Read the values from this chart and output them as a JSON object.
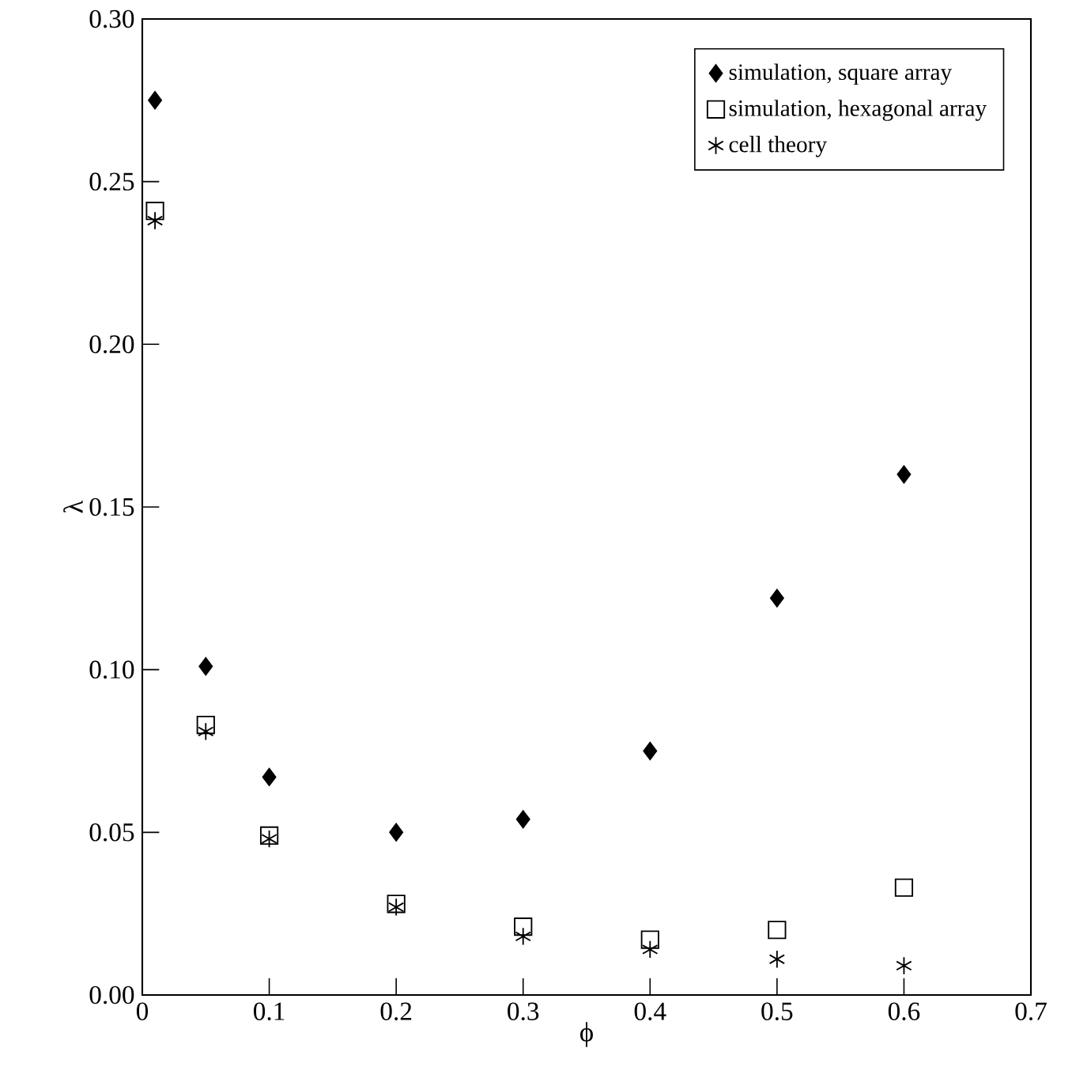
{
  "chart_data": {
    "type": "scatter",
    "xlabel": "ϕ",
    "ylabel": "λ",
    "xlim": [
      0,
      0.7
    ],
    "xticks": [
      0,
      0.1,
      0.2,
      0.3,
      0.4,
      0.5,
      0.6,
      0.7
    ],
    "ylim": [
      0,
      0.3
    ],
    "yticks": [
      {
        "value": 0,
        "label": "0.00"
      },
      {
        "value": 0.05,
        "label": "0.05"
      },
      {
        "value": 0.1,
        "label": "0.10"
      },
      {
        "value": 0.15,
        "label": "0.15"
      },
      {
        "value": 0.2,
        "label": "0.20"
      },
      {
        "value": 0.25,
        "label": "0.25"
      },
      {
        "value": 0.3,
        "label": "0.30"
      }
    ],
    "grid": false,
    "legend": "top right",
    "x": [
      0.01,
      0.05,
      0.1,
      0.2,
      0.3,
      0.4,
      0.5,
      0.6
    ],
    "series": [
      {
        "name": "simulation, square array",
        "color": "#000000",
        "marker": "diamond",
        "values": [
          0.275,
          0.101,
          0.067,
          0.05,
          0.054,
          0.075,
          0.122,
          0.16
        ]
      },
      {
        "name": "simulation, hexagonal array",
        "color": "#000000",
        "marker": "square",
        "values": [
          0.241,
          0.083,
          0.049,
          0.028,
          0.021,
          0.017,
          0.02,
          0.033
        ]
      },
      {
        "name": "cell theory",
        "color": "#000000",
        "marker": "cross",
        "values": [
          0.238,
          0.081,
          0.048,
          0.027,
          0.018,
          0.014,
          0.011,
          0.009
        ]
      }
    ]
  }
}
